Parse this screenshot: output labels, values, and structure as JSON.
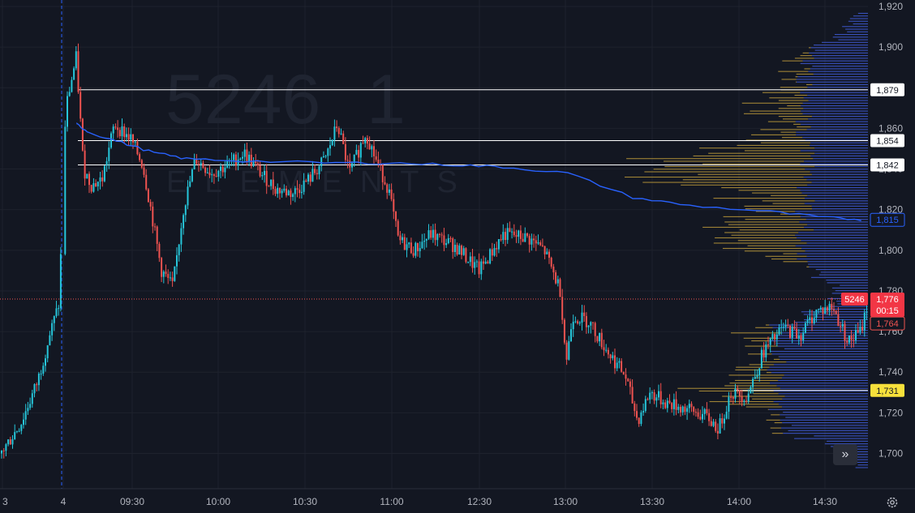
{
  "watermark": {
    "symbol": "5246",
    "interval": "1",
    "sub": "ELEMENTS"
  },
  "colors": {
    "bg": "#131722",
    "up": "#26c6da",
    "down": "#ef5350",
    "vwap": "#2962ff",
    "volume_profile": "#b8963a",
    "volume_profile_blue": "#3f5bd6",
    "poc": "#f7e03b",
    "hline": "#ffffff",
    "grid": "#1e222d"
  },
  "y_axis": {
    "min": 1690,
    "max": 1920,
    "ticks": [
      "1,920",
      "1,900",
      "1,880",
      "1,860",
      "1,840",
      "1,820",
      "1,800",
      "1,780",
      "1,760",
      "1,740",
      "1,720",
      "1,700"
    ]
  },
  "x_axis": {
    "labels": [
      "3",
      "4",
      "09:30",
      "10:00",
      "10:30",
      "11:00",
      "12:30",
      "13:00",
      "13:30",
      "14:00",
      "14:30"
    ]
  },
  "levels": [
    {
      "label": "1,879",
      "value": 1879,
      "style": "white"
    },
    {
      "label": "1,854",
      "value": 1854,
      "style": "white"
    },
    {
      "label": "1,842",
      "value": 1842,
      "style": "white"
    },
    {
      "label": "1,815",
      "value": 1815,
      "style": "blue"
    },
    {
      "label": "1,731",
      "value": 1731,
      "style": "yellow"
    },
    {
      "label": "1,764",
      "value": 1764,
      "style": "red-outline"
    }
  ],
  "last_price": {
    "symbol": "5246",
    "price": "1,776",
    "countdown": "00:15",
    "value": 1776
  },
  "chart_data": {
    "type": "candlestick",
    "symbol": "5246",
    "interval": "1",
    "ylim": [
      1690,
      1920
    ],
    "price_path": [
      [
        0,
        1700
      ],
      [
        25,
        1715
      ],
      [
        45,
        1735
      ],
      [
        60,
        1758
      ],
      [
        72,
        1774
      ],
      [
        80,
        1870
      ],
      [
        93,
        1895
      ],
      [
        102,
        1840
      ],
      [
        112,
        1832
      ],
      [
        125,
        1835
      ],
      [
        140,
        1862
      ],
      [
        160,
        1855
      ],
      [
        175,
        1842
      ],
      [
        185,
        1820
      ],
      [
        198,
        1790
      ],
      [
        212,
        1782
      ],
      [
        225,
        1820
      ],
      [
        240,
        1845
      ],
      [
        260,
        1838
      ],
      [
        280,
        1842
      ],
      [
        300,
        1848
      ],
      [
        320,
        1838
      ],
      [
        340,
        1830
      ],
      [
        360,
        1828
      ],
      [
        380,
        1835
      ],
      [
        400,
        1845
      ],
      [
        415,
        1862
      ],
      [
        430,
        1838
      ],
      [
        450,
        1858
      ],
      [
        462,
        1845
      ],
      [
        478,
        1830
      ],
      [
        490,
        1805
      ],
      [
        510,
        1800
      ],
      [
        530,
        1808
      ],
      [
        560,
        1802
      ],
      [
        590,
        1790
      ],
      [
        620,
        1808
      ],
      [
        650,
        1806
      ],
      [
        670,
        1800
      ],
      [
        690,
        1780
      ],
      [
        697,
        1745
      ],
      [
        705,
        1768
      ],
      [
        725,
        1765
      ],
      [
        745,
        1752
      ],
      [
        770,
        1738
      ],
      [
        785,
        1716
      ],
      [
        800,
        1730
      ],
      [
        820,
        1725
      ],
      [
        845,
        1722
      ],
      [
        870,
        1718
      ],
      [
        885,
        1712
      ],
      [
        900,
        1730
      ],
      [
        920,
        1728
      ],
      [
        940,
        1750
      ],
      [
        965,
        1762
      ],
      [
        985,
        1758
      ],
      [
        1005,
        1770
      ],
      [
        1025,
        1772
      ],
      [
        1045,
        1755
      ],
      [
        1060,
        1760
      ],
      [
        1070,
        1776
      ]
    ],
    "vwap_path": [
      [
        95,
        1862
      ],
      [
        110,
        1858
      ],
      [
        150,
        1853
      ],
      [
        190,
        1848
      ],
      [
        230,
        1845
      ],
      [
        300,
        1844
      ],
      [
        400,
        1843
      ],
      [
        480,
        1843
      ],
      [
        560,
        1842
      ],
      [
        620,
        1841
      ],
      [
        700,
        1838
      ],
      [
        780,
        1826
      ],
      [
        850,
        1822
      ],
      [
        950,
        1819
      ],
      [
        1020,
        1816
      ],
      [
        1070,
        1815
      ]
    ]
  }
}
